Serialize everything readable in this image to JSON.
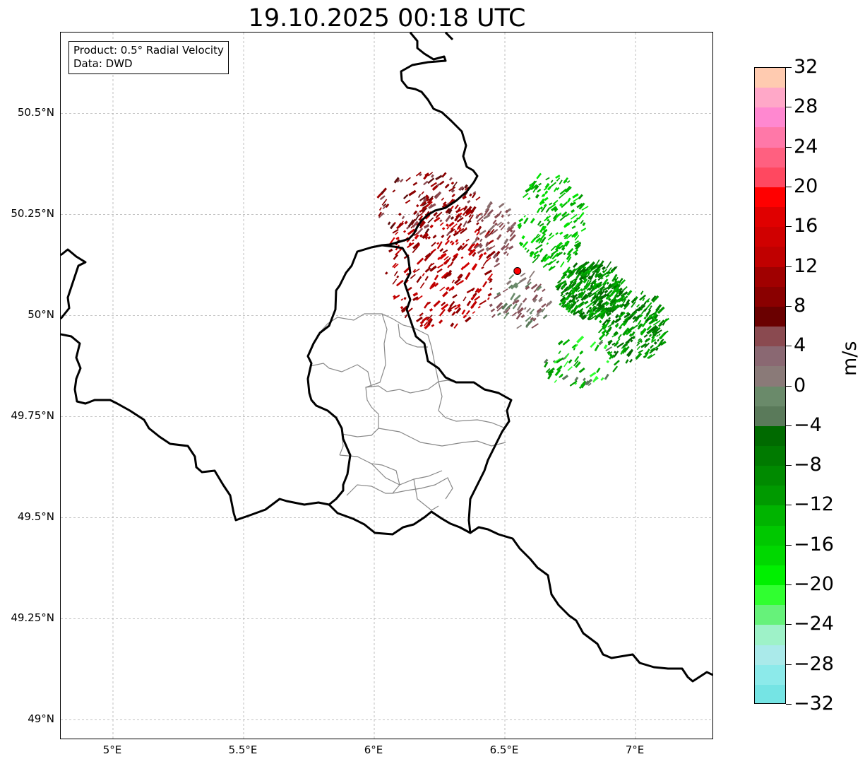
{
  "title": "19.10.2025 00:18 UTC",
  "info_box": {
    "product": "Product: 0.5° Radial Velocity",
    "data": "Data: DWD"
  },
  "map": {
    "lon_range": [
      4.8,
      7.3
    ],
    "lat_range": [
      48.95,
      50.7
    ],
    "lat_ticks": [
      {
        "value": 50.5,
        "label": "50.5°N"
      },
      {
        "value": 50.25,
        "label": "50.25°N"
      },
      {
        "value": 50.0,
        "label": "50°N"
      },
      {
        "value": 49.75,
        "label": "49.75°N"
      },
      {
        "value": 49.5,
        "label": "49.5°N"
      },
      {
        "value": 49.25,
        "label": "49.25°N"
      },
      {
        "value": 49.0,
        "label": "49°N"
      }
    ],
    "lon_ticks": [
      {
        "value": 5.0,
        "label": "5°E"
      },
      {
        "value": 5.5,
        "label": "5.5°E"
      },
      {
        "value": 6.0,
        "label": "6°E"
      },
      {
        "value": 6.5,
        "label": "6.5°E"
      },
      {
        "value": 7.0,
        "label": "7°E"
      }
    ],
    "radar_site": {
      "lon": 6.548,
      "lat": 50.11
    },
    "colors": {
      "border": "#000000",
      "admin": "#888888",
      "grid": "#b0b0b0",
      "site": "#ff0000"
    },
    "echo_regions": [
      {
        "name": "outbound-core",
        "lon": 6.25,
        "lat": 50.12,
        "rx": 0.22,
        "ry": 0.16,
        "count": 260,
        "colors": [
          "#a00000",
          "#c00000",
          "#8a0000",
          "#d00000"
        ]
      },
      {
        "name": "outbound-north",
        "lon": 6.2,
        "lat": 50.27,
        "rx": 0.2,
        "ry": 0.08,
        "count": 120,
        "colors": [
          "#8a0000",
          "#a00000",
          "#8a4a50",
          "#5e1010"
        ]
      },
      {
        "name": "outbound-weak",
        "lon": 6.45,
        "lat": 50.2,
        "rx": 0.08,
        "ry": 0.08,
        "count": 60,
        "colors": [
          "#865058",
          "#8a7070",
          "#8a4a50"
        ]
      },
      {
        "name": "inbound-core",
        "lon": 6.82,
        "lat": 50.06,
        "rx": 0.13,
        "ry": 0.07,
        "count": 320,
        "colors": [
          "#006a00",
          "#008400",
          "#009a00",
          "#00b400"
        ]
      },
      {
        "name": "inbound-east",
        "lon": 6.98,
        "lat": 49.97,
        "rx": 0.13,
        "ry": 0.09,
        "count": 220,
        "colors": [
          "#008400",
          "#009a00",
          "#00b400",
          "#006a00"
        ]
      },
      {
        "name": "inbound-north",
        "lon": 6.67,
        "lat": 50.23,
        "rx": 0.13,
        "ry": 0.12,
        "count": 170,
        "colors": [
          "#00b400",
          "#00cc00",
          "#009a00",
          "#00e400"
        ]
      },
      {
        "name": "near-zero",
        "lon": 6.55,
        "lat": 50.03,
        "rx": 0.12,
        "ry": 0.07,
        "count": 70,
        "colors": [
          "#6a8a6a",
          "#5a7a5a",
          "#8a7a78",
          "#865058"
        ]
      },
      {
        "name": "southeast",
        "lon": 6.78,
        "lat": 49.88,
        "rx": 0.15,
        "ry": 0.06,
        "count": 60,
        "colors": [
          "#009a00",
          "#5a7a5a",
          "#00b400",
          "#30ff30"
        ]
      }
    ]
  },
  "colorbar": {
    "unit": "m/s",
    "min": -32,
    "max": 32,
    "colors": [
      "#75e4e4",
      "#8ceaea",
      "#aaeaea",
      "#9ef2c8",
      "#66f27a",
      "#30ff30",
      "#00f000",
      "#00d800",
      "#00c800",
      "#00b400",
      "#009a00",
      "#008a00",
      "#007a00",
      "#006a00",
      "#5a7a5a",
      "#6a8a6a",
      "#8a7a78",
      "#8a6872",
      "#8a4a50",
      "#6a0000",
      "#8a0000",
      "#a00000",
      "#c00000",
      "#d00000",
      "#e00000",
      "#ff0000",
      "#ff4860",
      "#ff6080",
      "#ff78a8",
      "#ff88d0",
      "#ffa8c8",
      "#ffcbb0"
    ],
    "tick_labels": [
      "32",
      "28",
      "24",
      "20",
      "16",
      "12",
      "8",
      "4",
      "0",
      "−4",
      "−8",
      "−12",
      "−16",
      "−20",
      "−24",
      "−28",
      "−32"
    ],
    "tick_values": [
      32,
      28,
      24,
      20,
      16,
      12,
      8,
      4,
      0,
      -4,
      -8,
      -12,
      -16,
      -20,
      -24,
      -28,
      -32
    ]
  }
}
